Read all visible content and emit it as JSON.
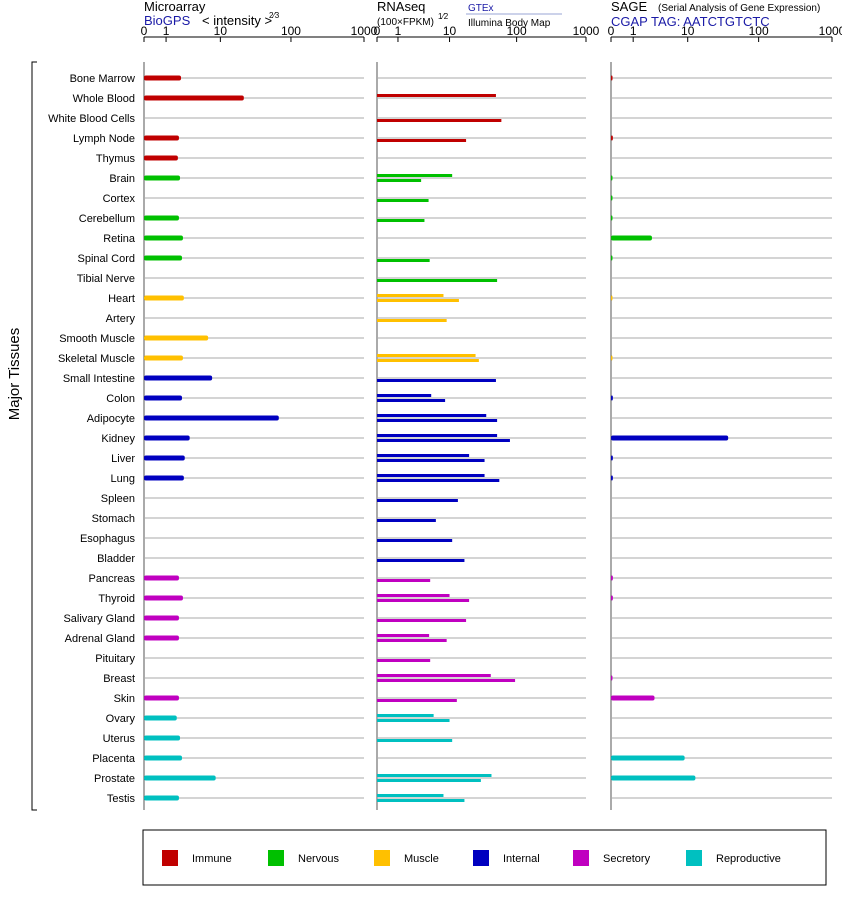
{
  "chart_data": {
    "type": "bar",
    "ylabel": "Major Tissues",
    "x_ticks": [
      "0",
      "1",
      "10",
      "100",
      "1000"
    ],
    "tick_values": [
      0,
      1,
      10,
      100,
      1000
    ],
    "xlim": [
      0,
      1000
    ],
    "tissues": [
      {
        "name": "Bone Marrow",
        "group": "immune"
      },
      {
        "name": "Whole Blood",
        "group": "immune"
      },
      {
        "name": "White Blood Cells",
        "group": "immune"
      },
      {
        "name": "Lymph Node",
        "group": "immune"
      },
      {
        "name": "Thymus",
        "group": "immune"
      },
      {
        "name": "Brain",
        "group": "nervous"
      },
      {
        "name": "Cortex",
        "group": "nervous"
      },
      {
        "name": "Cerebellum",
        "group": "nervous"
      },
      {
        "name": "Retina",
        "group": "nervous"
      },
      {
        "name": "Spinal Cord",
        "group": "nervous"
      },
      {
        "name": "Tibial Nerve",
        "group": "nervous"
      },
      {
        "name": "Heart",
        "group": "muscle"
      },
      {
        "name": "Artery",
        "group": "muscle"
      },
      {
        "name": "Smooth Muscle",
        "group": "muscle"
      },
      {
        "name": "Skeletal Muscle",
        "group": "muscle"
      },
      {
        "name": "Small Intestine",
        "group": "internal"
      },
      {
        "name": "Colon",
        "group": "internal"
      },
      {
        "name": "Adipocyte",
        "group": "internal"
      },
      {
        "name": "Kidney",
        "group": "internal"
      },
      {
        "name": "Liver",
        "group": "internal"
      },
      {
        "name": "Lung",
        "group": "internal"
      },
      {
        "name": "Spleen",
        "group": "internal"
      },
      {
        "name": "Stomach",
        "group": "internal"
      },
      {
        "name": "Esophagus",
        "group": "internal"
      },
      {
        "name": "Bladder",
        "group": "internal"
      },
      {
        "name": "Pancreas",
        "group": "secretory"
      },
      {
        "name": "Thyroid",
        "group": "secretory"
      },
      {
        "name": "Salivary Gland",
        "group": "secretory"
      },
      {
        "name": "Adrenal Gland",
        "group": "secretory"
      },
      {
        "name": "Pituitary",
        "group": "secretory"
      },
      {
        "name": "Breast",
        "group": "secretory"
      },
      {
        "name": "Skin",
        "group": "secretory"
      },
      {
        "name": "Ovary",
        "group": "reproductive"
      },
      {
        "name": "Uterus",
        "group": "reproductive"
      },
      {
        "name": "Placenta",
        "group": "reproductive"
      },
      {
        "name": "Prostate",
        "group": "reproductive"
      },
      {
        "name": "Testis",
        "group": "reproductive"
      }
    ],
    "groups": {
      "immune": "#c00000",
      "nervous": "#00c000",
      "muscle": "#ffc000",
      "internal": "#0000c0",
      "secretory": "#c000c0",
      "reproductive": "#00c0c0"
    },
    "panels": [
      {
        "key": "microarray",
        "title": "Microarray",
        "subtitle_link": "BioGPS",
        "subtitle_text": "< intensity >",
        "subtitle_exp": "2⁄3",
        "bar_style": "thick",
        "values": [
          2.2,
          22,
          null,
          2,
          1.9,
          2.1,
          null,
          2,
          2.4,
          2.3,
          null,
          2.5,
          null,
          6.5,
          2.4,
          7.5,
          2.3,
          68,
          3.2,
          2.6,
          2.5,
          null,
          null,
          null,
          null,
          2,
          2.4,
          2,
          2,
          null,
          null,
          2,
          1.8,
          2.1,
          2.3,
          8.5,
          2
        ]
      },
      {
        "key": "rnaseq",
        "title": "RNAseq",
        "subtitle_text": "(100×FPKM)",
        "subtitle_exp": "1⁄2",
        "legend_gtex": "GTEx",
        "legend_ibm": "Illumina Body Map",
        "bar_style": "pair",
        "values": [
          [
            null,
            null
          ],
          [
            50,
            null
          ],
          [
            null,
            60
          ],
          [
            null,
            18
          ],
          [
            null,
            null
          ],
          [
            11,
            3.3
          ],
          [
            null,
            4.5
          ],
          [
            null,
            3.8
          ],
          [
            null,
            null
          ],
          [
            null,
            4.7
          ],
          [
            null,
            52
          ],
          [
            8,
            14
          ],
          [
            null,
            9
          ],
          [
            null,
            null
          ],
          [
            25,
            28
          ],
          [
            null,
            50
          ],
          [
            5,
            8.5
          ],
          [
            36,
            52
          ],
          [
            52,
            80
          ],
          [
            20,
            34
          ],
          [
            34,
            56
          ],
          [
            null,
            13.5
          ],
          [
            null,
            6
          ],
          [
            null,
            11
          ],
          [
            null,
            17
          ],
          [
            null,
            4.8
          ],
          [
            10,
            20
          ],
          [
            null,
            18
          ],
          [
            4.6,
            9
          ],
          [
            null,
            4.8
          ],
          [
            42,
            95
          ],
          [
            null,
            13
          ],
          [
            5.5,
            10
          ],
          [
            null,
            11
          ],
          [
            null,
            null
          ],
          [
            43,
            30
          ],
          [
            8,
            17
          ]
        ]
      },
      {
        "key": "sage",
        "title": "SAGE",
        "subtitle_small": "(Serial Analysis of Gene Expression)",
        "tag_label": "CGAP  TAG: AATCTGTCTC",
        "bar_style": "thick",
        "values": [
          0.05,
          null,
          null,
          0.06,
          null,
          0.04,
          0.03,
          0.03,
          2.6,
          0.04,
          null,
          0.02,
          null,
          null,
          0.02,
          null,
          0.06,
          null,
          38,
          0.06,
          0.06,
          null,
          null,
          null,
          null,
          0.06,
          0.06,
          null,
          null,
          null,
          0.04,
          2.9,
          null,
          null,
          9,
          13,
          null
        ]
      }
    ],
    "legend": [
      {
        "label": "Immune",
        "group": "immune"
      },
      {
        "label": "Nervous",
        "group": "nervous"
      },
      {
        "label": "Muscle",
        "group": "muscle"
      },
      {
        "label": "Internal",
        "group": "internal"
      },
      {
        "label": "Secretory",
        "group": "secretory"
      },
      {
        "label": "Reproductive",
        "group": "reproductive"
      }
    ]
  }
}
